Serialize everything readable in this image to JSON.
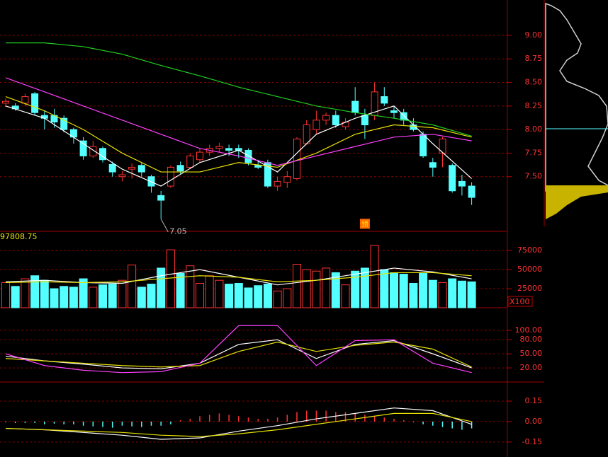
{
  "chart_data": [
    {
      "type": "candlestick",
      "open": [
        8.28,
        8.25,
        8.28,
        8.38,
        8.15,
        8.15,
        8.12,
        8.0,
        7.88,
        7.72,
        7.8,
        7.63,
        7.5,
        7.58,
        7.62,
        7.5,
        7.3,
        7.4,
        7.62,
        7.6,
        7.68,
        7.76,
        7.8,
        7.8,
        7.8,
        7.78,
        7.62,
        7.65,
        7.4,
        7.44,
        7.48,
        7.85,
        8.0,
        8.1,
        8.15,
        8.03,
        8.3,
        8.15,
        8.15,
        8.35,
        8.2,
        8.18,
        8.05,
        7.95,
        7.65,
        7.75,
        7.62,
        7.45,
        7.4
      ],
      "high": [
        8.33,
        8.28,
        8.38,
        8.4,
        8.2,
        8.22,
        8.15,
        8.02,
        7.92,
        7.88,
        7.82,
        7.66,
        7.56,
        7.64,
        7.65,
        7.52,
        7.35,
        7.62,
        7.66,
        7.75,
        7.8,
        7.84,
        7.86,
        7.84,
        7.84,
        7.8,
        7.68,
        7.68,
        7.5,
        7.56,
        7.92,
        8.1,
        8.2,
        8.18,
        8.2,
        8.12,
        8.45,
        8.22,
        8.5,
        8.45,
        8.25,
        8.22,
        8.12,
        7.98,
        7.7,
        7.92,
        7.64,
        7.52,
        7.44
      ],
      "low": [
        8.24,
        8.2,
        8.25,
        8.15,
        8.0,
        8.02,
        7.97,
        7.85,
        7.68,
        7.7,
        7.65,
        7.5,
        7.45,
        7.48,
        7.5,
        7.33,
        7.05,
        7.38,
        7.53,
        7.58,
        7.65,
        7.72,
        7.76,
        7.72,
        7.7,
        7.62,
        7.58,
        7.38,
        7.35,
        7.38,
        7.46,
        7.84,
        7.95,
        8.05,
        8.02,
        8.0,
        8.15,
        7.9,
        8.1,
        8.25,
        8.12,
        8.05,
        7.98,
        7.7,
        7.5,
        7.6,
        7.33,
        7.3,
        7.2
      ],
      "close": [
        8.3,
        8.22,
        8.35,
        8.18,
        8.12,
        8.08,
        8.0,
        7.92,
        7.72,
        7.82,
        7.68,
        7.55,
        7.52,
        7.6,
        7.55,
        7.4,
        7.25,
        7.6,
        7.56,
        7.72,
        7.76,
        7.8,
        7.82,
        7.78,
        7.78,
        7.65,
        7.6,
        7.4,
        7.45,
        7.5,
        7.9,
        8.05,
        8.1,
        8.15,
        8.05,
        8.08,
        8.18,
        8.05,
        8.4,
        8.28,
        8.18,
        8.1,
        8.0,
        7.72,
        7.6,
        7.9,
        7.35,
        7.4,
        7.28
      ],
      "series": [
        {
          "color": "#ffffff",
          "x": [
            0,
            4,
            8,
            12,
            16,
            20,
            24,
            28,
            32,
            36,
            40,
            44,
            48
          ],
          "values": [
            8.25,
            8.12,
            7.85,
            7.58,
            7.4,
            7.65,
            7.78,
            7.55,
            7.95,
            8.12,
            8.25,
            7.85,
            7.48
          ]
        },
        {
          "color": "#e8e000",
          "x": [
            0,
            4,
            8,
            12,
            16,
            20,
            24,
            28,
            32,
            36,
            40,
            44,
            48
          ],
          "values": [
            8.35,
            8.2,
            8.0,
            7.75,
            7.55,
            7.55,
            7.65,
            7.6,
            7.75,
            7.95,
            8.05,
            8.02,
            7.92
          ]
        },
        {
          "color": "#ff40ff",
          "x": [
            0,
            4,
            8,
            12,
            16,
            20,
            24,
            28,
            32,
            36,
            40,
            44,
            48
          ],
          "values": [
            8.55,
            8.4,
            8.25,
            8.1,
            7.95,
            7.8,
            7.72,
            7.62,
            7.72,
            7.82,
            7.92,
            7.95,
            7.88
          ]
        },
        {
          "color": "#20d020",
          "x": [
            0,
            4,
            8,
            12,
            16,
            20,
            24,
            28,
            32,
            36,
            40,
            44,
            48
          ],
          "values": [
            8.92,
            8.92,
            8.88,
            8.8,
            8.68,
            8.57,
            8.45,
            8.35,
            8.25,
            8.18,
            8.12,
            8.05,
            7.93
          ]
        }
      ],
      "annotations": [
        {
          "text": "7.05",
          "x": 16,
          "value": 7.05
        },
        {
          "text": "预",
          "x": 37,
          "value": 7.0
        }
      ],
      "ylim": [
        6.92,
        9.375
      ],
      "yticks": [
        {
          "value": 7.5,
          "label": "7.50"
        },
        {
          "value": 7.75,
          "label": "7.75"
        },
        {
          "value": 8.0,
          "label": "8.00"
        },
        {
          "value": 8.25,
          "label": "8.25"
        },
        {
          "value": 8.5,
          "label": "8.50"
        },
        {
          "value": 8.75,
          "label": "8.75"
        },
        {
          "value": 9.0,
          "label": "9.00"
        }
      ],
      "grid": true,
      "up_color": "#ff3232",
      "down_color": "#54ffff"
    },
    {
      "type": "volume",
      "title": "97808.75",
      "unit_label": "X100",
      "values": [
        33000,
        28000,
        38000,
        42000,
        36000,
        25000,
        28000,
        27000,
        38000,
        27000,
        30000,
        31000,
        36000,
        56000,
        27000,
        31000,
        52000,
        76000,
        45000,
        55000,
        32000,
        42000,
        36000,
        31000,
        32000,
        26000,
        29000,
        31000,
        22000,
        25000,
        57000,
        50000,
        48000,
        52000,
        46000,
        30000,
        48000,
        52000,
        82000,
        50000,
        46000,
        44000,
        32000,
        46000,
        36000,
        33000,
        38000,
        35000,
        34000
      ],
      "series": [
        {
          "color": "#ffffff",
          "x": [
            0,
            4,
            8,
            12,
            16,
            20,
            24,
            28,
            32,
            36,
            40,
            44,
            48
          ],
          "values": [
            34000,
            36000,
            33000,
            32000,
            42000,
            50000,
            40000,
            30000,
            36000,
            44000,
            52000,
            47000,
            38000
          ]
        },
        {
          "color": "#e8e000",
          "x": [
            0,
            4,
            8,
            12,
            16,
            20,
            24,
            28,
            32,
            36,
            40,
            44,
            48
          ],
          "values": [
            33000,
            34000,
            33000,
            34000,
            38000,
            42000,
            40000,
            34000,
            36000,
            40000,
            46000,
            46000,
            42000
          ]
        }
      ],
      "ylim": [
        0,
        90000
      ],
      "yticks": [
        25000,
        50000,
        75000
      ],
      "grid": true
    },
    {
      "type": "line",
      "series": [
        {
          "color": "#ffffff",
          "x": [
            0,
            4,
            8,
            12,
            16,
            20,
            24,
            28,
            32,
            36,
            40,
            44,
            48
          ],
          "values": [
            45,
            35,
            28,
            20,
            18,
            30,
            70,
            80,
            40,
            70,
            78,
            50,
            20
          ]
        },
        {
          "color": "#e8e000",
          "x": [
            0,
            4,
            8,
            12,
            16,
            20,
            24,
            28,
            32,
            36,
            40,
            44,
            48
          ],
          "values": [
            40,
            35,
            30,
            25,
            22,
            25,
            55,
            75,
            55,
            68,
            75,
            60,
            22
          ]
        },
        {
          "color": "#ff40ff",
          "x": [
            0,
            4,
            8,
            12,
            16,
            20,
            24,
            28,
            32,
            36,
            40,
            44,
            48
          ],
          "values": [
            50,
            25,
            15,
            10,
            12,
            30,
            110,
            110,
            25,
            78,
            80,
            30,
            10
          ]
        }
      ],
      "ylim": [
        -10,
        145
      ],
      "yticks": [
        {
          "value": 20,
          "label": "20.00"
        },
        {
          "value": 50,
          "label": "50.00"
        },
        {
          "value": 80,
          "label": "80.00"
        },
        {
          "value": 100,
          "label": "100.00"
        }
      ],
      "grid": true
    },
    {
      "type": "macd",
      "values": [
        -0.005,
        -0.01,
        -0.01,
        -0.01,
        -0.02,
        -0.015,
        -0.02,
        -0.02,
        -0.03,
        -0.035,
        -0.04,
        -0.045,
        -0.03,
        -0.035,
        -0.04,
        -0.03,
        -0.03,
        -0.02,
        0.01,
        0.02,
        0.04,
        0.05,
        0.06,
        0.05,
        0.04,
        0.03,
        0.02,
        0.02,
        0.03,
        0.05,
        0.07,
        0.08,
        0.08,
        0.08,
        0.07,
        0.07,
        0.06,
        0.05,
        0.04,
        0.03,
        0.02,
        0.01,
        -0.005,
        -0.02,
        -0.03,
        -0.04,
        -0.05,
        -0.06,
        -0.05
      ],
      "series": [
        {
          "color": "#ffffff",
          "x": [
            0,
            4,
            8,
            12,
            16,
            20,
            24,
            28,
            32,
            36,
            40,
            44,
            48
          ],
          "values": [
            -0.05,
            -0.06,
            -0.08,
            -0.1,
            -0.13,
            -0.12,
            -0.07,
            -0.03,
            0.02,
            0.06,
            0.1,
            0.08,
            -0.02
          ]
        },
        {
          "color": "#e8e000",
          "x": [
            0,
            4,
            8,
            12,
            16,
            20,
            24,
            28,
            32,
            36,
            40,
            44,
            48
          ],
          "values": [
            -0.05,
            -0.06,
            -0.07,
            -0.08,
            -0.1,
            -0.11,
            -0.09,
            -0.06,
            -0.02,
            0.02,
            0.06,
            0.06,
            0.0
          ]
        }
      ],
      "ylim": [
        -0.26,
        0.28
      ],
      "yticks": [
        -0.15,
        {
          "value": 0,
          "label": "0.00"
        },
        0.15
      ],
      "grid": true
    }
  ]
}
